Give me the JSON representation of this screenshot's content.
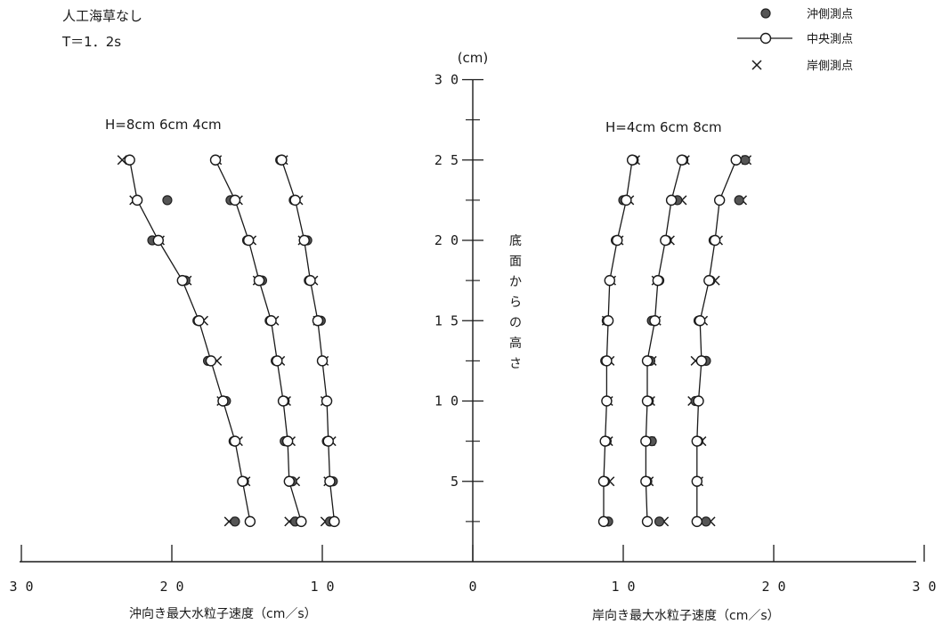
{
  "chart_data": {
    "type": "scatter",
    "notes": [
      "人工海草なし",
      "T＝1．2s"
    ],
    "legend": {
      "placement": "top-right",
      "entries": [
        {
          "marker": "filled-circle",
          "label": "沖側測点"
        },
        {
          "marker": "open-circle-line",
          "label": "中央測点"
        },
        {
          "marker": "cross",
          "label": "岸側測点"
        }
      ]
    },
    "y_axis": {
      "unit": "(cm)",
      "label": "底面からの高さ",
      "range": [
        0,
        30
      ],
      "ticks": [
        5,
        10,
        15,
        20,
        25,
        30
      ],
      "tick_labels": [
        "5",
        "1 0",
        "1 5",
        "2 0",
        "2 5",
        "3 0"
      ]
    },
    "x_axis": {
      "range": [
        -30,
        30
      ],
      "ticks": [
        -30,
        -20,
        -10,
        0,
        10,
        20,
        30
      ],
      "tick_labels": [
        "3 0",
        "2 0",
        "1 0",
        "0",
        "1 0",
        "2 0",
        "3 0"
      ],
      "label_left": "沖向き最大水粒子速度（cm／s）",
      "label_right": "岸向き最大水粒子速度（cm／s）"
    },
    "group_labels": {
      "left": "H=8cm  6cm  4cm",
      "right": "H=4cm  6cm  8cm"
    },
    "heights": [
      2.5,
      5,
      7.5,
      10,
      12.5,
      15,
      17.5,
      20,
      22.5,
      25
    ],
    "series": [
      {
        "side": "offshore",
        "H": 8,
        "central": [
          14.8,
          15.3,
          15.8,
          16.6,
          17.4,
          18.2,
          19.3,
          20.9,
          22.3,
          22.8
        ],
        "offshore_pt": [
          15.8,
          15.2,
          15.9,
          16.4,
          17.6,
          18.3,
          19.1,
          21.3,
          20.3,
          22.8
        ],
        "onshore_pt": [
          16.2,
          15.1,
          15.6,
          16.7,
          17.0,
          17.9,
          19.0,
          20.8,
          22.5,
          23.3
        ]
      },
      {
        "side": "offshore",
        "H": 6,
        "central": [
          11.4,
          12.2,
          12.3,
          12.6,
          13.0,
          13.4,
          14.2,
          14.9,
          15.8,
          17.1
        ],
        "offshore_pt": [
          11.8,
          12.0,
          12.5,
          12.5,
          13.1,
          13.5,
          14.0,
          15.0,
          16.1,
          17.1
        ],
        "onshore_pt": [
          12.2,
          11.8,
          12.1,
          12.4,
          12.8,
          13.2,
          14.3,
          14.7,
          15.6,
          17.0
        ]
      },
      {
        "side": "offshore",
        "H": 4,
        "central": [
          9.2,
          9.5,
          9.6,
          9.7,
          10.0,
          10.3,
          10.8,
          11.2,
          11.8,
          12.7
        ],
        "offshore_pt": [
          9.5,
          9.3,
          9.7,
          9.7,
          10.0,
          10.1,
          10.9,
          11.0,
          11.9,
          12.8
        ],
        "onshore_pt": [
          9.8,
          9.6,
          9.4,
          9.8,
          9.9,
          10.3,
          10.6,
          11.3,
          11.6,
          12.6
        ]
      },
      {
        "side": "onshore",
        "H": 4,
        "central": [
          8.7,
          8.7,
          8.8,
          8.9,
          8.9,
          9.0,
          9.1,
          9.6,
          10.2,
          10.6
        ],
        "offshore_pt": [
          9.0,
          8.8,
          8.9,
          8.9,
          8.8,
          8.9,
          9.1,
          9.5,
          10.0,
          10.7
        ],
        "onshore_pt": [
          8.8,
          9.1,
          9.0,
          9.0,
          9.1,
          8.9,
          9.2,
          9.7,
          10.4,
          10.8
        ]
      },
      {
        "side": "onshore",
        "H": 6,
        "central": [
          11.6,
          11.5,
          11.5,
          11.6,
          11.6,
          12.1,
          12.3,
          12.8,
          13.2,
          13.9
        ],
        "offshore_pt": [
          12.4,
          11.6,
          11.9,
          11.7,
          11.8,
          11.9,
          12.4,
          12.9,
          13.6,
          14.0
        ],
        "onshore_pt": [
          12.7,
          11.7,
          11.8,
          11.8,
          11.9,
          12.2,
          12.2,
          13.1,
          13.9,
          14.1
        ]
      },
      {
        "side": "onshore",
        "H": 8,
        "central": [
          14.9,
          14.9,
          14.9,
          15.0,
          15.2,
          15.1,
          15.7,
          16.1,
          16.4,
          17.5
        ],
        "offshore_pt": [
          15.5,
          14.9,
          15.0,
          14.8,
          15.5,
          15.0,
          15.8,
          16.0,
          17.7,
          18.1
        ],
        "onshore_pt": [
          15.8,
          15.0,
          15.2,
          14.6,
          14.8,
          15.3,
          16.1,
          16.3,
          17.9,
          18.2
        ]
      }
    ]
  }
}
